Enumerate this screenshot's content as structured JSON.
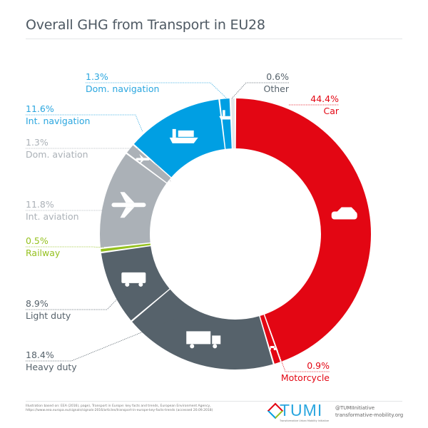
{
  "chart_data": {
    "type": "donut",
    "title": "Overall GHG from Transport in EU28",
    "unit": "%",
    "segments": [
      {
        "name": "Car",
        "value": 44.4,
        "label": "44.4%",
        "color": "#e30613",
        "icon": "car-icon"
      },
      {
        "name": "Motorcycle",
        "value": 0.9,
        "label": "0.9%",
        "color": "#e30613",
        "icon": "motorcycle-icon"
      },
      {
        "name": "Heavy duty",
        "value": 18.4,
        "label": "18.4%",
        "color": "#56626b",
        "icon": "truck-icon"
      },
      {
        "name": "Light duty",
        "value": 8.9,
        "label": "8.9%",
        "color": "#56626b",
        "icon": "van-icon"
      },
      {
        "name": "Railway",
        "value": 0.5,
        "label": "0.5%",
        "color": "#95c11f",
        "icon": ""
      },
      {
        "name": "Int. aviation",
        "value": 11.8,
        "label": "11.8%",
        "color": "#abb1b7",
        "icon": "airplane-icon"
      },
      {
        "name": "Dom. aviation",
        "value": 1.3,
        "label": "1.3%",
        "color": "#abb1b7",
        "icon": "small-plane-icon"
      },
      {
        "name": "Int. navigation",
        "value": 11.6,
        "label": "11.6%",
        "color": "#009fe3",
        "icon": "container-ship-icon"
      },
      {
        "name": "Dom. navigation",
        "value": 1.3,
        "label": "1.3%",
        "color": "#009fe3",
        "icon": "ferry-icon"
      },
      {
        "name": "Other",
        "value": 0.6,
        "label": "0.6%",
        "color": "#e4e7ea",
        "icon": ""
      }
    ],
    "label_colors": {
      "Car": "#e30613",
      "Motorcycle": "#e30613",
      "Heavy duty": "#56626b",
      "Light duty": "#56626b",
      "Railway": "#95c11f",
      "Int. aviation": "#abb1b7",
      "Dom. aviation": "#abb1b7",
      "Int. navigation": "#2aa6df",
      "Dom. navigation": "#2aa6df",
      "Other": "#56626b"
    }
  },
  "footer": {
    "source": "Illustration based on: EEA (2016), page), Transport in Europe: key facts and trends, European Environment Agency, https://www.eea.europa.eu/signals/signals-2016/articles/transport-in-europe-key-facts-trends (accessed 20.09.2018)",
    "logo_text": "TUMI",
    "logo_subtitle": "Transformative Urban Mobility Initiative",
    "handle": "@TUMIInitiative",
    "website": "transformative-mobility.org"
  }
}
